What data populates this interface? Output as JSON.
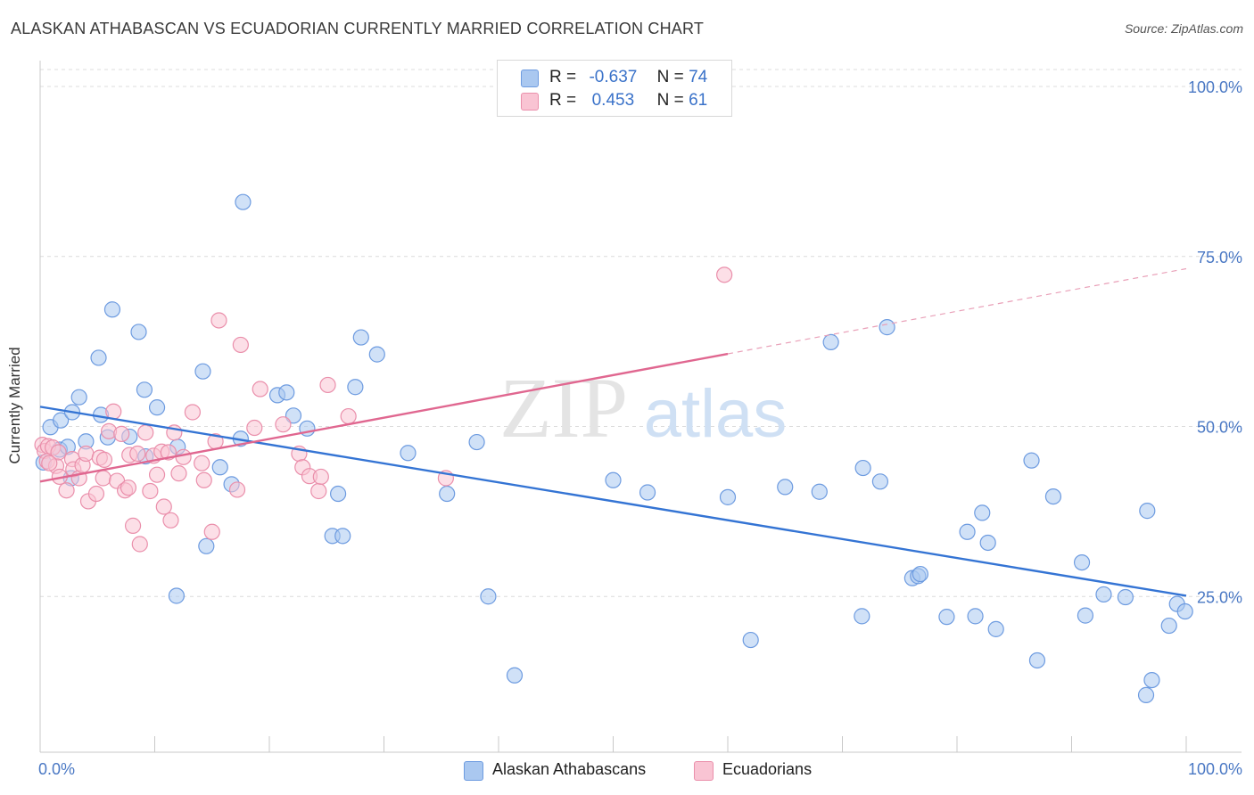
{
  "title": "ALASKAN ATHABASCAN VS ECUADORIAN CURRENTLY MARRIED CORRELATION CHART",
  "source": "Source: ZipAtlas.com",
  "watermark": {
    "zip": "ZIP",
    "atlas": "atlas"
  },
  "legend_stats": {
    "r_label": "R =",
    "n_label": "N =",
    "series": [
      {
        "r": "-0.637",
        "n": "74",
        "color": "#aac8f0",
        "border": "#6d9be0"
      },
      {
        "r": "0.453",
        "n": "61",
        "color": "#f9c4d3",
        "border": "#ea8fab"
      }
    ]
  },
  "chart_data": {
    "type": "scatter",
    "title": "ALASKAN ATHABASCAN VS ECUADORIAN CURRENTLY MARRIED CORRELATION CHART",
    "xlabel": "",
    "ylabel": "Currently Married",
    "xlim": [
      0,
      100
    ],
    "ylim": [
      0,
      100
    ],
    "x_tick_labels": [
      "0.0%",
      "100.0%"
    ],
    "y_tick_labels": [
      "25.0%",
      "50.0%",
      "75.0%",
      "100.0%"
    ],
    "y_tick_values": [
      25,
      50,
      75,
      100
    ],
    "grid": true,
    "legend_position": "bottom",
    "series": [
      {
        "name": "Alaskan Athabascans",
        "color": "#6d9be0",
        "fill": "#aac8f0",
        "trend": {
          "x": [
            0,
            100
          ],
          "y": [
            52.9,
            25.1
          ],
          "dashed_from": null
        },
        "points": [
          [
            0.3,
            44.7
          ],
          [
            0.9,
            49.9
          ],
          [
            1.7,
            46.6
          ],
          [
            1.8,
            50.9
          ],
          [
            2.7,
            42.4
          ],
          [
            2.4,
            47.0
          ],
          [
            2.8,
            52.1
          ],
          [
            3.4,
            54.3
          ],
          [
            4.0,
            47.8
          ],
          [
            5.1,
            60.1
          ],
          [
            5.3,
            51.7
          ],
          [
            6.3,
            67.2
          ],
          [
            5.9,
            48.4
          ],
          [
            7.8,
            48.5
          ],
          [
            8.6,
            63.9
          ],
          [
            9.1,
            55.4
          ],
          [
            9.2,
            45.6
          ],
          [
            10.2,
            52.8
          ],
          [
            12.0,
            47.0
          ],
          [
            11.9,
            25.1
          ],
          [
            14.2,
            58.1
          ],
          [
            14.5,
            32.4
          ],
          [
            15.7,
            44.0
          ],
          [
            16.7,
            41.5
          ],
          [
            17.5,
            48.2
          ],
          [
            17.7,
            83.0
          ],
          [
            20.7,
            54.6
          ],
          [
            21.5,
            55.0
          ],
          [
            22.1,
            51.6
          ],
          [
            23.3,
            49.7
          ],
          [
            25.5,
            33.9
          ],
          [
            26.0,
            40.1
          ],
          [
            26.4,
            33.9
          ],
          [
            27.5,
            55.8
          ],
          [
            28.0,
            63.1
          ],
          [
            29.4,
            60.6
          ],
          [
            32.1,
            46.1
          ],
          [
            35.5,
            40.1
          ],
          [
            38.1,
            47.7
          ],
          [
            39.1,
            25.0
          ],
          [
            41.4,
            13.4
          ],
          [
            50.0,
            42.1
          ],
          [
            53.0,
            40.3
          ],
          [
            60.0,
            39.6
          ],
          [
            62.0,
            18.6
          ],
          [
            65.0,
            41.1
          ],
          [
            68.0,
            40.4
          ],
          [
            69.0,
            62.4
          ],
          [
            71.7,
            22.1
          ],
          [
            71.8,
            43.9
          ],
          [
            73.9,
            64.6
          ],
          [
            73.3,
            41.9
          ],
          [
            76.1,
            27.7
          ],
          [
            76.6,
            28.0
          ],
          [
            76.8,
            28.3
          ],
          [
            79.1,
            22.0
          ],
          [
            80.9,
            34.5
          ],
          [
            81.6,
            22.1
          ],
          [
            82.2,
            37.3
          ],
          [
            82.7,
            32.9
          ],
          [
            83.4,
            20.2
          ],
          [
            86.5,
            45.0
          ],
          [
            87.0,
            15.6
          ],
          [
            88.4,
            39.7
          ],
          [
            90.9,
            30.0
          ],
          [
            92.8,
            25.3
          ],
          [
            94.7,
            24.9
          ],
          [
            96.6,
            37.6
          ],
          [
            97.0,
            12.7
          ],
          [
            96.5,
            10.5
          ],
          [
            99.2,
            23.9
          ],
          [
            99.9,
            22.8
          ],
          [
            98.5,
            20.7
          ],
          [
            91.2,
            22.2
          ]
        ]
      },
      {
        "name": "Ecuadorians",
        "color": "#ea8fab",
        "fill": "#f9c4d3",
        "trend": {
          "x": [
            0,
            100
          ],
          "y": [
            41.9,
            73.2
          ],
          "dashed_from": 60
        },
        "points": [
          [
            0.2,
            47.3
          ],
          [
            0.4,
            46.4
          ],
          [
            0.6,
            44.9
          ],
          [
            0.7,
            47.1
          ],
          [
            1.1,
            46.9
          ],
          [
            1.4,
            44.2
          ],
          [
            1.6,
            46.2
          ],
          [
            1.7,
            42.6
          ],
          [
            2.3,
            40.6
          ],
          [
            2.8,
            45.2
          ],
          [
            2.9,
            43.7
          ],
          [
            3.4,
            42.4
          ],
          [
            3.7,
            44.3
          ],
          [
            4.0,
            46.0
          ],
          [
            4.2,
            39.0
          ],
          [
            4.9,
            40.1
          ],
          [
            5.2,
            45.4
          ],
          [
            5.5,
            42.4
          ],
          [
            5.6,
            45.1
          ],
          [
            6.0,
            49.3
          ],
          [
            6.4,
            52.2
          ],
          [
            6.7,
            42.0
          ],
          [
            7.1,
            48.9
          ],
          [
            7.4,
            40.6
          ],
          [
            7.7,
            41.0
          ],
          [
            7.8,
            45.8
          ],
          [
            8.1,
            35.4
          ],
          [
            8.5,
            46.0
          ],
          [
            8.7,
            32.7
          ],
          [
            9.2,
            49.1
          ],
          [
            9.6,
            40.5
          ],
          [
            9.9,
            45.7
          ],
          [
            10.2,
            42.9
          ],
          [
            10.6,
            46.3
          ],
          [
            10.8,
            38.2
          ],
          [
            11.2,
            46.2
          ],
          [
            11.4,
            36.2
          ],
          [
            11.7,
            49.1
          ],
          [
            12.1,
            43.1
          ],
          [
            12.5,
            45.5
          ],
          [
            13.3,
            52.1
          ],
          [
            14.1,
            44.6
          ],
          [
            14.3,
            42.1
          ],
          [
            15.0,
            34.5
          ],
          [
            15.3,
            47.8
          ],
          [
            15.6,
            65.6
          ],
          [
            17.2,
            40.7
          ],
          [
            17.5,
            62.0
          ],
          [
            18.7,
            49.8
          ],
          [
            19.2,
            55.5
          ],
          [
            21.2,
            50.3
          ],
          [
            22.6,
            46.0
          ],
          [
            22.9,
            44.0
          ],
          [
            23.5,
            42.7
          ],
          [
            24.3,
            40.5
          ],
          [
            24.5,
            42.6
          ],
          [
            25.1,
            56.1
          ],
          [
            26.9,
            51.5
          ],
          [
            35.4,
            42.4
          ],
          [
            59.7,
            72.3
          ],
          [
            0.8,
            44.6
          ]
        ]
      }
    ]
  }
}
